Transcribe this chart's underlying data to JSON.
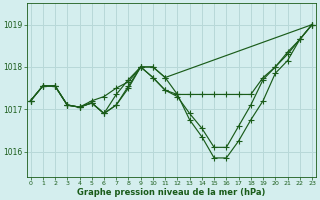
{
  "title": "Graphe pression niveau de la mer (hPa)",
  "background_color": "#d4eeee",
  "grid_color": "#b8d8d8",
  "line_color": "#1a5c1a",
  "x_ticks": [
    0,
    1,
    2,
    3,
    4,
    5,
    6,
    7,
    8,
    9,
    10,
    11,
    12,
    13,
    14,
    15,
    16,
    17,
    18,
    19,
    20,
    21,
    22,
    23
  ],
  "y_ticks": [
    1016,
    1017,
    1018,
    1019
  ],
  "ylim": [
    1015.4,
    1019.5
  ],
  "xlim": [
    -0.3,
    23.3
  ],
  "line1_x": [
    0,
    1,
    2,
    3,
    4,
    5,
    6,
    7,
    8,
    9,
    10,
    11,
    23
  ],
  "line1_y": [
    1017.2,
    1017.55,
    1017.55,
    1017.1,
    1017.05,
    1017.2,
    1017.3,
    1017.5,
    1017.65,
    1018.0,
    1018.0,
    1017.75,
    1019.0
  ],
  "line2_x": [
    0,
    1,
    2,
    3,
    4,
    5,
    6,
    7,
    8,
    9,
    10,
    11,
    12,
    13,
    14,
    15,
    16,
    17,
    18,
    19,
    20,
    21,
    22,
    23
  ],
  "line2_y": [
    1017.2,
    1017.55,
    1017.55,
    1017.1,
    1017.05,
    1017.15,
    1016.9,
    1017.1,
    1017.5,
    1018.0,
    1018.0,
    1017.75,
    1017.35,
    1016.75,
    1016.35,
    1015.85,
    1015.85,
    1016.25,
    1016.75,
    1017.2,
    1017.85,
    1018.15,
    1018.65,
    1019.0
  ],
  "line3_x": [
    0,
    1,
    2,
    3,
    4,
    5,
    6,
    7,
    8,
    9,
    10,
    11,
    12,
    13,
    14,
    15,
    16,
    17,
    18,
    19,
    20,
    21,
    22,
    23
  ],
  "line3_y": [
    1017.2,
    1017.55,
    1017.55,
    1017.1,
    1017.05,
    1017.15,
    1016.9,
    1017.1,
    1017.55,
    1018.0,
    1017.75,
    1017.45,
    1017.35,
    1017.35,
    1017.35,
    1017.35,
    1017.35,
    1017.35,
    1017.35,
    1017.75,
    1018.0,
    1018.3,
    1018.65,
    1019.0
  ],
  "line4_x": [
    0,
    1,
    2,
    3,
    4,
    5,
    6,
    7,
    8,
    9,
    10,
    11,
    12,
    13,
    14,
    15,
    16,
    17,
    18,
    19,
    20,
    21,
    22,
    23
  ],
  "line4_y": [
    1017.2,
    1017.55,
    1017.55,
    1017.1,
    1017.05,
    1017.15,
    1016.9,
    1017.35,
    1017.7,
    1018.0,
    1017.75,
    1017.45,
    1017.3,
    1016.9,
    1016.55,
    1016.1,
    1016.1,
    1016.6,
    1017.1,
    1017.7,
    1018.0,
    1018.35,
    1018.65,
    1019.0
  ]
}
